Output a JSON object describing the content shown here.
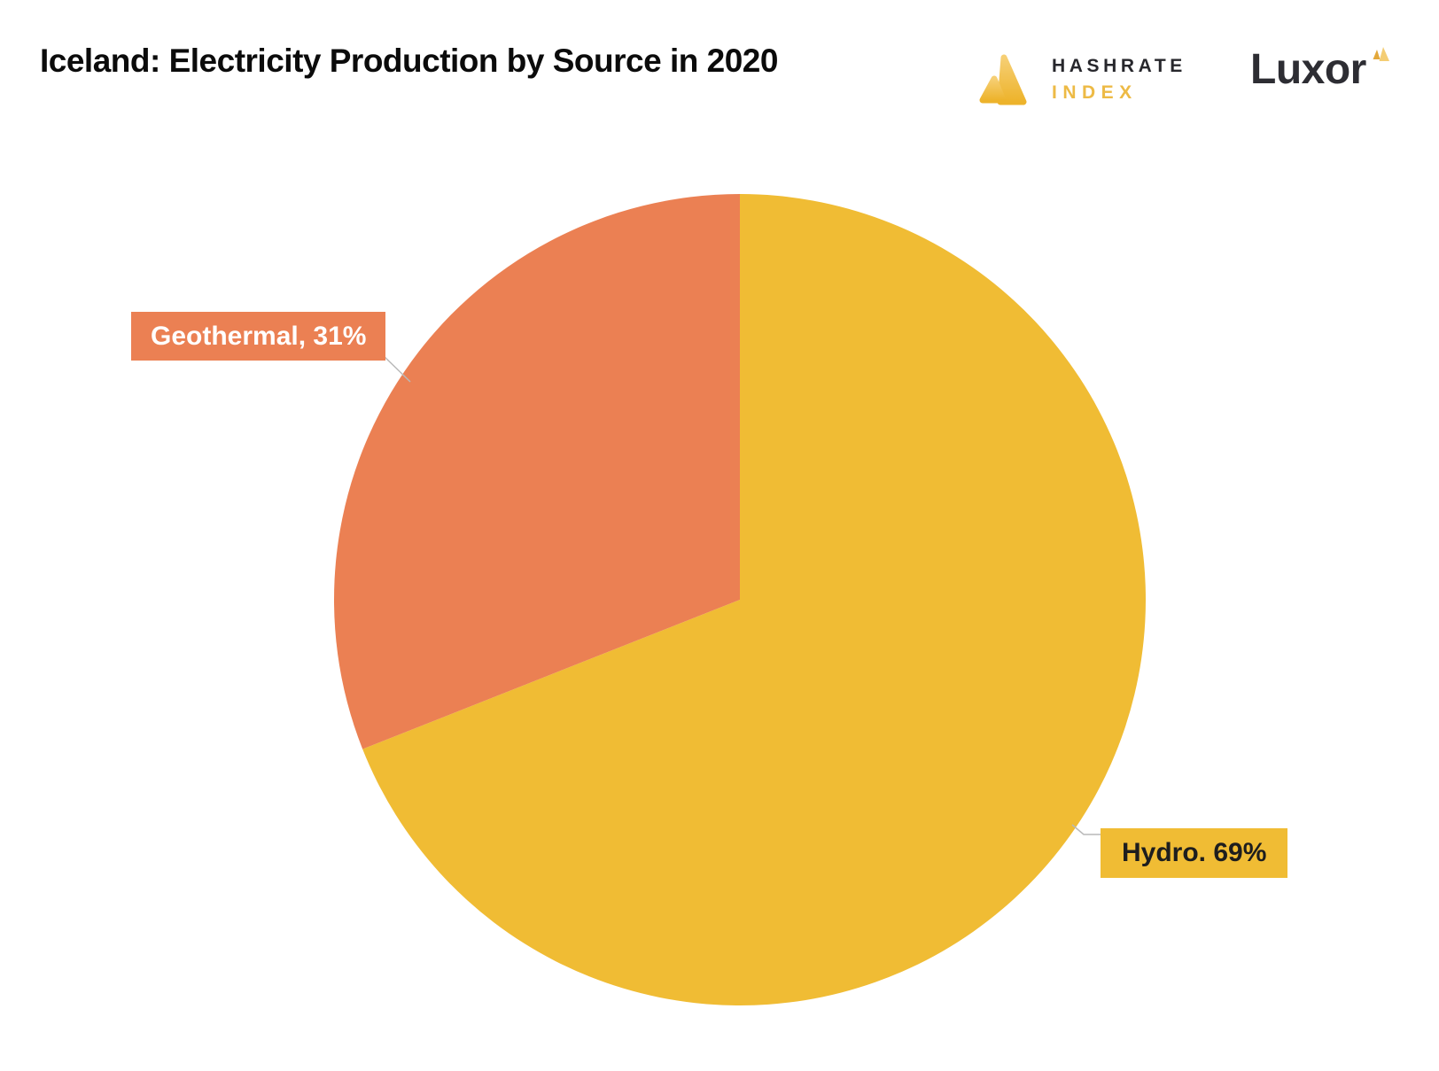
{
  "page": {
    "background": "#FFFFFF"
  },
  "header": {
    "title": "Iceland: Electricity Production by Source in 2020",
    "hashrate_index_logo": {
      "mark_icon": "hashrate-index-triangles",
      "line1": "HASHRATE",
      "line2": "INDEX",
      "line1_color": "#27272C",
      "line2_color": "#EDBA45",
      "mark_color_top": "#F6CF74",
      "mark_color_bottom": "#EDB32B"
    },
    "luxor_logo": {
      "text": "Luxor",
      "text_color": "#2D2D33",
      "mark_icon": "luxor-triangles",
      "mark_color_left": "#E3A83B",
      "mark_color_right": "#F4CD74"
    }
  },
  "chart_data": {
    "type": "pie",
    "title": "Iceland: Electricity Production by Source in 2020",
    "start_angle": "12 o'clock",
    "direction": "clockwise",
    "legend": "none",
    "labels_style": "callout boxes with gray leader lines",
    "leader_line_color": "#B9B9B9",
    "slices": [
      {
        "name": "Hydro",
        "value": 69,
        "unit": "%",
        "label": "Hydro. 69%",
        "color": "#F0BC34",
        "label_bg": "#F0BC34",
        "label_text_color": "#1E1E1E"
      },
      {
        "name": "Geothermal",
        "value": 31,
        "unit": "%",
        "label": "Geothermal, 31%",
        "color": "#EB8053",
        "label_bg": "#EB8053",
        "label_text_color": "#FFFFFF"
      }
    ]
  }
}
